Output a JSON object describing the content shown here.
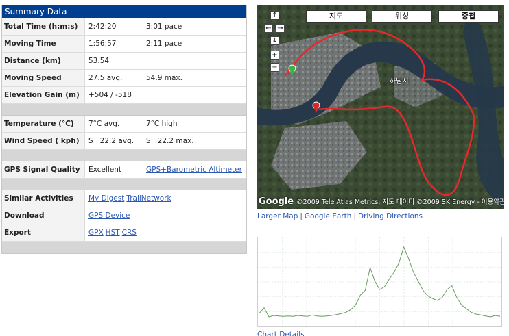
{
  "summary": {
    "title": "Summary Data",
    "rows": [
      {
        "label": "Total Time (h:m:s)",
        "value": "2:42:20",
        "extra": "3:01 pace"
      },
      {
        "label": "Moving Time (h:m:s)",
        "value": "1:56:57",
        "extra": "2:11 pace"
      },
      {
        "label": "Distance (km)",
        "value": "53.54",
        "extra": ""
      },
      {
        "label": "Moving Speed (kph)",
        "value": "27.5 avg.",
        "extra": "54.9 max."
      },
      {
        "label": "Elevation Gain (m)",
        "value": "+504 / -518",
        "extra": ""
      }
    ],
    "weather": [
      {
        "label": "Temperature (°C)",
        "value": "7°C avg.",
        "extra": "7°C high"
      },
      {
        "label": "Wind Speed ( kph)",
        "value": "S   22.2 avg.",
        "extra": "S   22.2 max."
      }
    ],
    "gps": {
      "label": "GPS Signal Quality",
      "value": "Excellent",
      "link": "GPS+Barometric Altimeter"
    },
    "similar": {
      "label": "Similar Activities",
      "links": [
        "My Digest",
        "TrailNetwork"
      ]
    },
    "download": {
      "label": "Download",
      "links": [
        "GPS Device"
      ]
    },
    "export": {
      "label": "Export",
      "links": [
        "GPX",
        "HST",
        "CRS"
      ]
    }
  },
  "map": {
    "types": [
      "지도",
      "위성",
      "중첩"
    ],
    "active_type": "중첩",
    "city_label": "하남시",
    "copyright": "©2009 Tele Atlas Metrics, 지도 데이터 ©2009 SK Energy - 이용약관",
    "logo": "Google",
    "controls": {
      "up": "↑",
      "left": "←",
      "right": "→",
      "down": "↓",
      "zoom_in": "+",
      "zoom_out": "−"
    },
    "route_color": "#e8282a",
    "start_marker_color": "#3bb54a",
    "end_marker_color": "#d9272e"
  },
  "map_links": {
    "larger": "Larger Map",
    "earth": "Google Earth",
    "directions": "Driving Directions",
    "separator": "|"
  },
  "chart_link": "Chart Details",
  "chart_data": {
    "type": "line",
    "title": "",
    "xlabel": "",
    "ylabel": "",
    "x": [
      0,
      2,
      4,
      6,
      8,
      10,
      12,
      14,
      16,
      18,
      20,
      22,
      24,
      26,
      28,
      30,
      32,
      34,
      36,
      38,
      40,
      42,
      44,
      46,
      48,
      50,
      52,
      54,
      56,
      58,
      60,
      62,
      64,
      66,
      68,
      70,
      72,
      74,
      76,
      78,
      80,
      82,
      84,
      86,
      88,
      90,
      92,
      94,
      96,
      98,
      100
    ],
    "values": [
      20,
      32,
      12,
      15,
      14,
      13,
      14,
      13,
      15,
      14,
      13,
      16,
      14,
      13,
      14,
      15,
      17,
      19,
      22,
      28,
      38,
      60,
      70,
      120,
      90,
      72,
      78,
      95,
      110,
      130,
      165,
      140,
      110,
      90,
      70,
      58,
      52,
      48,
      55,
      72,
      80,
      55,
      38,
      30,
      22,
      18,
      16,
      14,
      12,
      15,
      13
    ],
    "xlim": [
      0,
      100
    ],
    "ylim": [
      0,
      180
    ],
    "grid": true,
    "line_color": "#6a9a60"
  }
}
